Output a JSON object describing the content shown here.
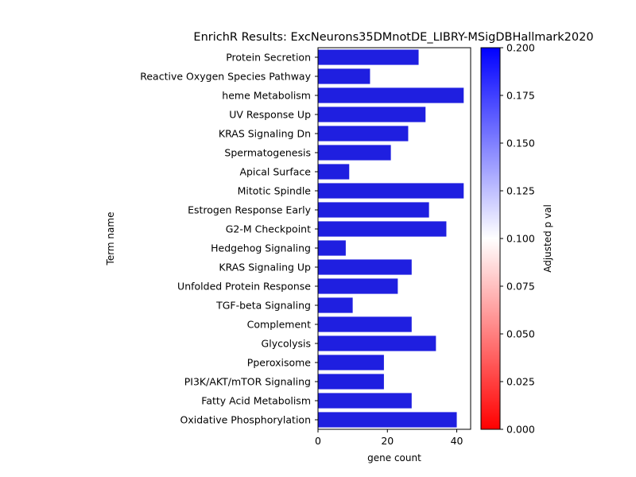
{
  "chart_data": {
    "type": "bar",
    "orientation": "horizontal",
    "title": "EnrichR Results: ExcNeurons35DMnotDE_LIBRY-MSigDBHallmark2020",
    "xlabel": "gene count",
    "ylabel": "Term name",
    "xlim": [
      0,
      44
    ],
    "xticks": [
      0,
      20,
      40
    ],
    "categories": [
      "Protein Secretion",
      "Reactive Oxygen Species Pathway",
      "heme Metabolism",
      "UV Response Up",
      "KRAS Signaling Dn",
      "Spermatogenesis",
      "Apical Surface",
      "Mitotic Spindle",
      "Estrogen Response Early",
      "G2-M Checkpoint",
      "Hedgehog Signaling",
      "KRAS Signaling Up",
      "Unfolded Protein Response",
      "TGF-beta Signaling",
      "Complement",
      "Glycolysis",
      "Pperoxisome",
      "PI3K/AKT/mTOR  Signaling",
      "Fatty Acid Metabolism",
      "Oxidative Phosphorylation"
    ],
    "values": [
      29,
      15,
      42,
      31,
      26,
      21,
      9,
      42,
      32,
      37,
      8,
      27,
      23,
      10,
      27,
      34,
      19,
      19,
      27,
      40
    ],
    "bar_color": "#1f1fe0",
    "colorbar": {
      "label": "Adjusted p val",
      "range": [
        0.0,
        0.2
      ],
      "ticks": [
        "0.000",
        "0.025",
        "0.050",
        "0.075",
        "0.100",
        "0.125",
        "0.150",
        "0.175",
        "0.200"
      ],
      "colors": [
        "#ff0000",
        "#ffffff",
        "#0000ff"
      ]
    },
    "grid": false
  }
}
